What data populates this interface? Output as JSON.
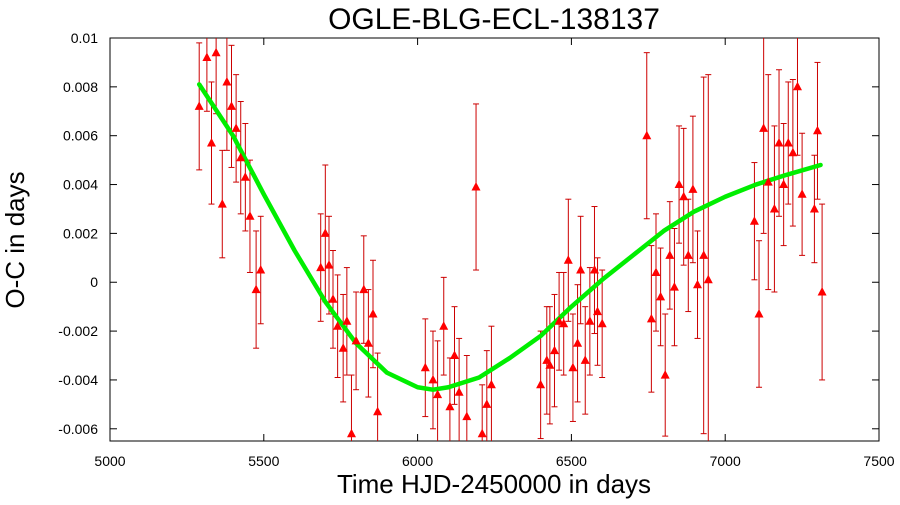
{
  "chart_data": {
    "type": "scatter",
    "title": "OGLE-BLG-ECL-138137",
    "xlabel": "Time HJD-2450000 in days",
    "ylabel": "O-C in days",
    "xlim": [
      5000,
      7500
    ],
    "ylim": [
      -0.0065,
      0.01
    ],
    "xticks": [
      5000,
      5500,
      6000,
      6500,
      7000,
      7500
    ],
    "xtick_labels": [
      "5000",
      "5500",
      "6000",
      "6500",
      "7000",
      "7500"
    ],
    "yticks": [
      -0.006,
      -0.004,
      -0.002,
      0,
      0.002,
      0.004,
      0.006,
      0.008,
      0.01
    ],
    "ytick_labels": [
      "-0.006",
      "-0.004",
      "-0.002",
      "0",
      "0.002",
      "0.004",
      "0.006",
      "0.008",
      "0.01"
    ],
    "grid": false,
    "colors": {
      "points": "#ff0000",
      "errorbars": "#cc0000",
      "fit": "#00ee00"
    },
    "series": [
      {
        "type": "scatter-errorbars",
        "marker": "triangle",
        "points": [
          {
            "x": 5290,
            "y": 0.0072,
            "err": 0.0026
          },
          {
            "x": 5315,
            "y": 0.0092,
            "err": 0.0022
          },
          {
            "x": 5330,
            "y": 0.0057,
            "err": 0.0025
          },
          {
            "x": 5345,
            "y": 0.0094,
            "err": 0.0025
          },
          {
            "x": 5365,
            "y": 0.0032,
            "err": 0.0022
          },
          {
            "x": 5380,
            "y": 0.0082,
            "err": 0.0028
          },
          {
            "x": 5395,
            "y": 0.0072,
            "err": 0.0025
          },
          {
            "x": 5410,
            "y": 0.0063,
            "err": 0.0022
          },
          {
            "x": 5425,
            "y": 0.0051,
            "err": 0.0023
          },
          {
            "x": 5440,
            "y": 0.0043,
            "err": 0.0022
          },
          {
            "x": 5455,
            "y": 0.0027,
            "err": 0.0023
          },
          {
            "x": 5475,
            "y": -0.0003,
            "err": 0.0024
          },
          {
            "x": 5490,
            "y": 0.0005,
            "err": 0.0022
          },
          {
            "x": 5685,
            "y": 0.0006,
            "err": 0.0022
          },
          {
            "x": 5700,
            "y": 0.002,
            "err": 0.0028
          },
          {
            "x": 5712,
            "y": 0.0007,
            "err": 0.002
          },
          {
            "x": 5725,
            "y": -0.0007,
            "err": 0.002
          },
          {
            "x": 5740,
            "y": -0.0018,
            "err": 0.0021
          },
          {
            "x": 5758,
            "y": -0.0027,
            "err": 0.0022
          },
          {
            "x": 5770,
            "y": -0.0016,
            "err": 0.0022
          },
          {
            "x": 5785,
            "y": -0.0062,
            "err": 0.0024
          },
          {
            "x": 5800,
            "y": -0.0024,
            "err": 0.002
          },
          {
            "x": 5825,
            "y": -0.0003,
            "err": 0.0022
          },
          {
            "x": 5840,
            "y": -0.0025,
            "err": 0.0022
          },
          {
            "x": 5855,
            "y": -0.0013,
            "err": 0.0022
          },
          {
            "x": 5870,
            "y": -0.0053,
            "err": 0.0024
          },
          {
            "x": 6025,
            "y": -0.0035,
            "err": 0.002
          },
          {
            "x": 6050,
            "y": -0.004,
            "err": 0.002
          },
          {
            "x": 6065,
            "y": -0.0046,
            "err": 0.0022
          },
          {
            "x": 6085,
            "y": -0.0018,
            "err": 0.002
          },
          {
            "x": 6105,
            "y": -0.0051,
            "err": 0.002
          },
          {
            "x": 6120,
            "y": -0.003,
            "err": 0.002
          },
          {
            "x": 6135,
            "y": -0.0045,
            "err": 0.0022
          },
          {
            "x": 6160,
            "y": -0.0055,
            "err": 0.0025
          },
          {
            "x": 6190,
            "y": 0.0039,
            "err": 0.0034
          },
          {
            "x": 6210,
            "y": -0.0062,
            "err": 0.002
          },
          {
            "x": 6225,
            "y": -0.005,
            "err": 0.0022
          },
          {
            "x": 6240,
            "y": -0.0042,
            "err": 0.0024
          },
          {
            "x": 6400,
            "y": -0.0042,
            "err": 0.0022
          },
          {
            "x": 6420,
            "y": -0.0032,
            "err": 0.0022
          },
          {
            "x": 6430,
            "y": -0.0034,
            "err": 0.0024
          },
          {
            "x": 6445,
            "y": -0.0028,
            "err": 0.0023
          },
          {
            "x": 6460,
            "y": -0.0016,
            "err": 0.002
          },
          {
            "x": 6475,
            "y": -0.0017,
            "err": 0.0021
          },
          {
            "x": 6490,
            "y": 0.0009,
            "err": 0.0025
          },
          {
            "x": 6505,
            "y": -0.0035,
            "err": 0.0022
          },
          {
            "x": 6520,
            "y": -0.0025,
            "err": 0.0024
          },
          {
            "x": 6530,
            "y": 0.0005,
            "err": 0.0022
          },
          {
            "x": 6545,
            "y": -0.0032,
            "err": 0.0022
          },
          {
            "x": 6560,
            "y": -0.0016,
            "err": 0.0022
          },
          {
            "x": 6575,
            "y": 0.0005,
            "err": 0.0026
          },
          {
            "x": 6585,
            "y": -0.0012,
            "err": 0.0022
          },
          {
            "x": 6600,
            "y": -0.0017,
            "err": 0.0022
          },
          {
            "x": 6745,
            "y": 0.006,
            "err": 0.0034
          },
          {
            "x": 6760,
            "y": -0.0015,
            "err": 0.003
          },
          {
            "x": 6775,
            "y": 0.0004,
            "err": 0.0024
          },
          {
            "x": 6790,
            "y": -0.0006,
            "err": 0.002
          },
          {
            "x": 6805,
            "y": -0.0038,
            "err": 0.0025
          },
          {
            "x": 6820,
            "y": 0.0011,
            "err": 0.0022
          },
          {
            "x": 6835,
            "y": -0.0002,
            "err": 0.0024
          },
          {
            "x": 6850,
            "y": 0.004,
            "err": 0.0024
          },
          {
            "x": 6865,
            "y": 0.0035,
            "err": 0.0028
          },
          {
            "x": 6880,
            "y": 0.0011,
            "err": 0.0023
          },
          {
            "x": 6895,
            "y": 0.0038,
            "err": 0.003
          },
          {
            "x": 6910,
            "y": -0.0001,
            "err": 0.0022
          },
          {
            "x": 6930,
            "y": 0.0011,
            "err": 0.0073
          },
          {
            "x": 6945,
            "y": 0.0001,
            "err": 0.0084
          },
          {
            "x": 7095,
            "y": 0.0025,
            "err": 0.0024
          },
          {
            "x": 7110,
            "y": -0.0013,
            "err": 0.003
          },
          {
            "x": 7125,
            "y": 0.0063,
            "err": 0.0043
          },
          {
            "x": 7140,
            "y": 0.0041,
            "err": 0.0044
          },
          {
            "x": 7160,
            "y": 0.003,
            "err": 0.0034
          },
          {
            "x": 7175,
            "y": 0.0057,
            "err": 0.003
          },
          {
            "x": 7190,
            "y": 0.004,
            "err": 0.0025
          },
          {
            "x": 7205,
            "y": 0.0057,
            "err": 0.0025
          },
          {
            "x": 7220,
            "y": 0.0053,
            "err": 0.003
          },
          {
            "x": 7235,
            "y": 0.008,
            "err": 0.0028
          },
          {
            "x": 7250,
            "y": 0.0036,
            "err": 0.0025
          },
          {
            "x": 7290,
            "y": 0.003,
            "err": 0.0022
          },
          {
            "x": 7300,
            "y": 0.0062,
            "err": 0.0028
          },
          {
            "x": 7315,
            "y": -0.0004,
            "err": 0.0036
          }
        ]
      },
      {
        "type": "fit-line",
        "x": [
          5290,
          5400,
          5500,
          5600,
          5700,
          5800,
          5900,
          6000,
          6050,
          6100,
          6200,
          6300,
          6400,
          6500,
          6600,
          6700,
          6800,
          6900,
          7000,
          7100,
          7200,
          7310
        ],
        "y": [
          0.0081,
          0.006,
          0.0036,
          0.0013,
          -0.0008,
          -0.0025,
          -0.0037,
          -0.0043,
          -0.0044,
          -0.0043,
          -0.0039,
          -0.0031,
          -0.0022,
          -0.001,
          0.0001,
          0.0011,
          0.0021,
          0.0029,
          0.0035,
          0.004,
          0.0044,
          0.0048
        ]
      }
    ]
  }
}
